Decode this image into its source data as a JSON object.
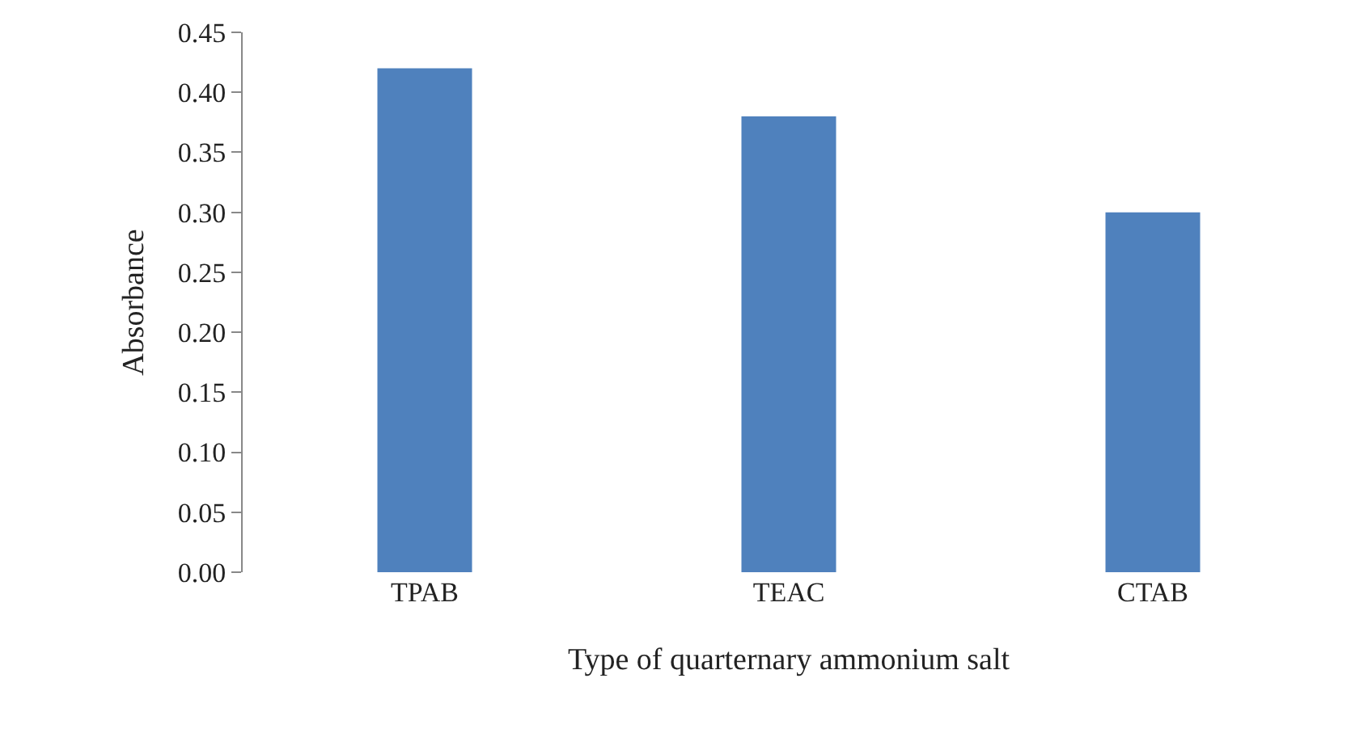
{
  "chart_data": {
    "type": "bar",
    "xlabel": "Type of quarternary ammonium salt",
    "ylabel": "Absorbance",
    "categories": [
      "TPAB",
      "TEAC",
      "CTAB"
    ],
    "values": [
      0.42,
      0.38,
      0.3
    ],
    "color": "#4f81bd",
    "ylim": [
      0,
      0.45
    ],
    "yticks": [
      {
        "value": 0,
        "label": "0.00"
      },
      {
        "value": 0.05,
        "label": "0.05"
      },
      {
        "value": 0.1,
        "label": "0.10"
      },
      {
        "value": 0.15,
        "label": "0.15"
      },
      {
        "value": 0.2,
        "label": "0.20"
      },
      {
        "value": 0.25,
        "label": "0.25"
      },
      {
        "value": 0.3,
        "label": "0.30"
      },
      {
        "value": 0.35,
        "label": "0.35"
      },
      {
        "value": 0.4,
        "label": "0.40"
      },
      {
        "value": 0.45,
        "label": "0.45"
      }
    ]
  }
}
